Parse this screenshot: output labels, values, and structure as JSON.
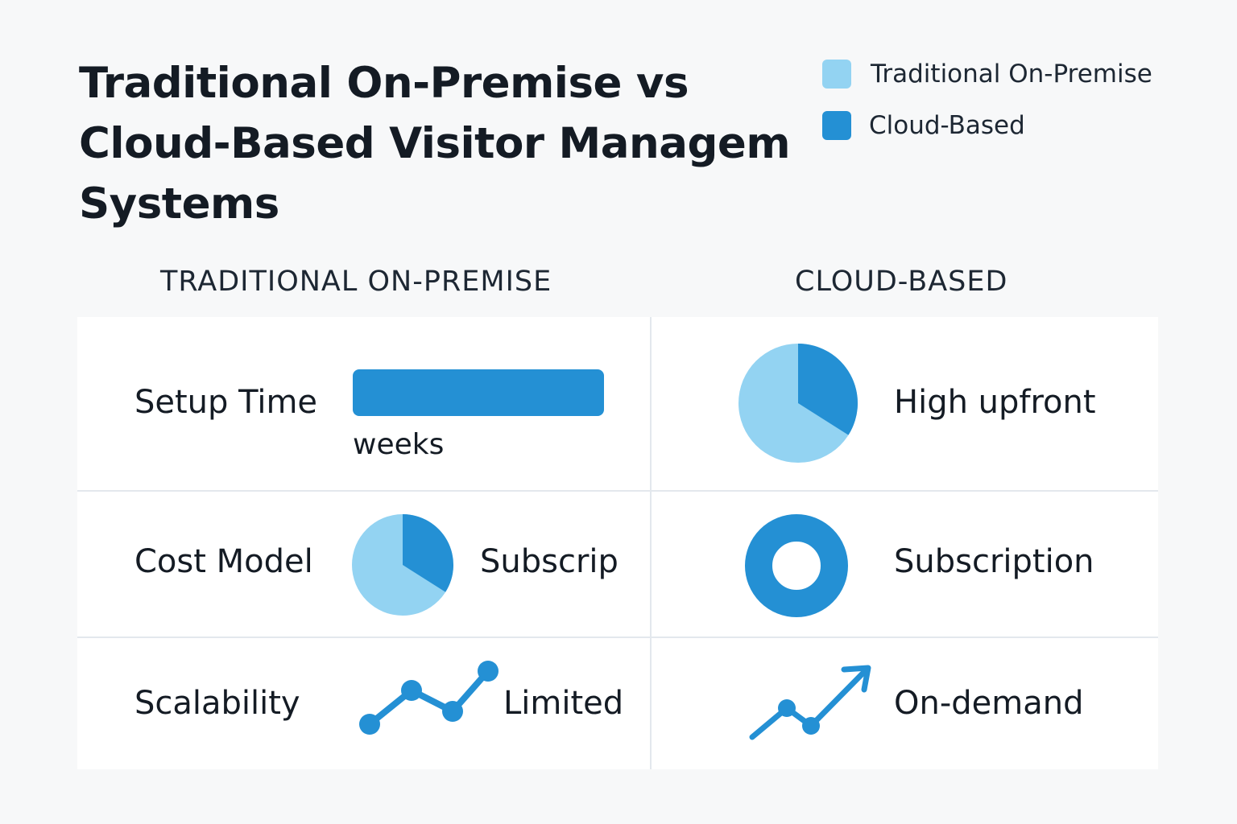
{
  "title": {
    "line1": "Traditional On-Premise vs",
    "line2": "Cloud-Based Visitor Managem",
    "line3": "Systems"
  },
  "legend": [
    {
      "label": "Traditional On-Premise",
      "color": "#93d3f2"
    },
    {
      "label": "Cloud-Based",
      "color": "#2490d4"
    }
  ],
  "columns": {
    "traditional": "TRADITIONAL ON-PREMISE",
    "cloud": "CLOUD-BASED"
  },
  "colors": {
    "light_blue": "#93d3f2",
    "dark_blue": "#2490d4"
  },
  "rows": [
    {
      "label": "Setup Time",
      "traditional": {
        "icon": "bar-icon",
        "unit": "weeks"
      },
      "cloud": {
        "icon": "pie-chart-icon",
        "value": "High upfront",
        "pie_dark_fraction": 0.34
      }
    },
    {
      "label": "Cost Model",
      "traditional": {
        "icon": "pie-chart-icon",
        "value": "Subscrip",
        "pie_dark_fraction": 0.34
      },
      "cloud": {
        "icon": "donut-icon",
        "value": "Subscription"
      }
    },
    {
      "label": "Scalability",
      "traditional": {
        "icon": "line-chart-icon",
        "value": "Limited"
      },
      "cloud": {
        "icon": "trend-up-arrow-icon",
        "value": "On-demand"
      }
    }
  ]
}
